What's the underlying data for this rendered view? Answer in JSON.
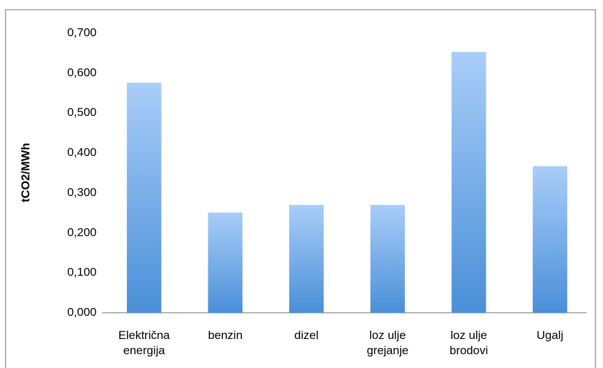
{
  "chart_data": {
    "type": "bar",
    "y_label": "tCO2/MWh",
    "categories": [
      "Električna energija",
      "benzin",
      "dizel",
      "loz ulje grejanje",
      "loz ulje brodovi",
      "Ugalj"
    ],
    "values": [
      0.576,
      0.251,
      0.27,
      0.27,
      0.653,
      0.367
    ],
    "color_top": "#a9cdf8",
    "color_bottom": "#4a8fd8",
    "ylim": [
      0,
      0.7
    ],
    "yticks": [
      {
        "value": 0,
        "label": "0,000"
      },
      {
        "value": 0.1,
        "label": "0,100"
      },
      {
        "value": 0.2,
        "label": "0,200"
      },
      {
        "value": 0.3,
        "label": "0,300"
      },
      {
        "value": 0.4,
        "label": "0,400"
      },
      {
        "value": 0.5,
        "label": "0,500"
      },
      {
        "value": 0.6,
        "label": "0,600"
      },
      {
        "value": 0.7,
        "label": "0,700"
      }
    ],
    "grid": false
  }
}
